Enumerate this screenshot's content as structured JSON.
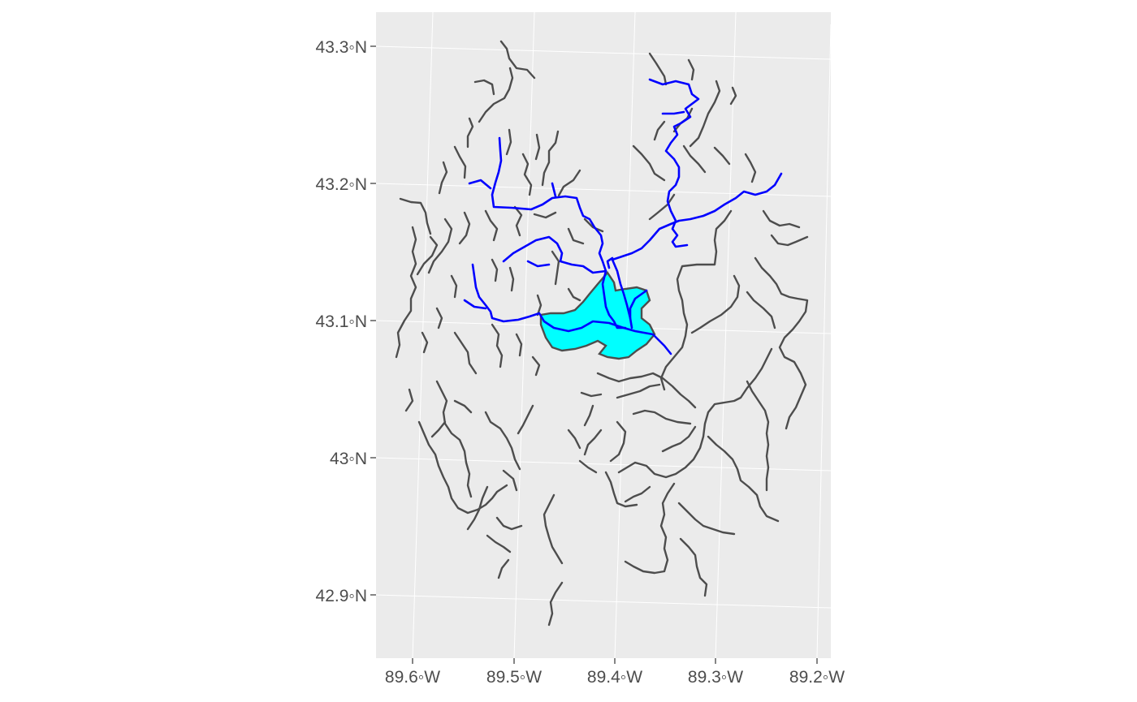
{
  "map": {
    "panel_background": "#ebebeb",
    "grid_color": "#ffffff",
    "stream_color": "#4d4d4d",
    "highlight_color": "#0000ff",
    "lake_fill": "#00ffff",
    "lake_outline": "#4d4d4d",
    "y_ticks": [
      "43.3◦N",
      "43.2◦N",
      "43.1◦N",
      "43◦N",
      "42.9◦N"
    ],
    "x_ticks": [
      "89.6◦W",
      "89.5◦W",
      "89.4◦W",
      "89.3◦W",
      "89.2◦W"
    ]
  }
}
